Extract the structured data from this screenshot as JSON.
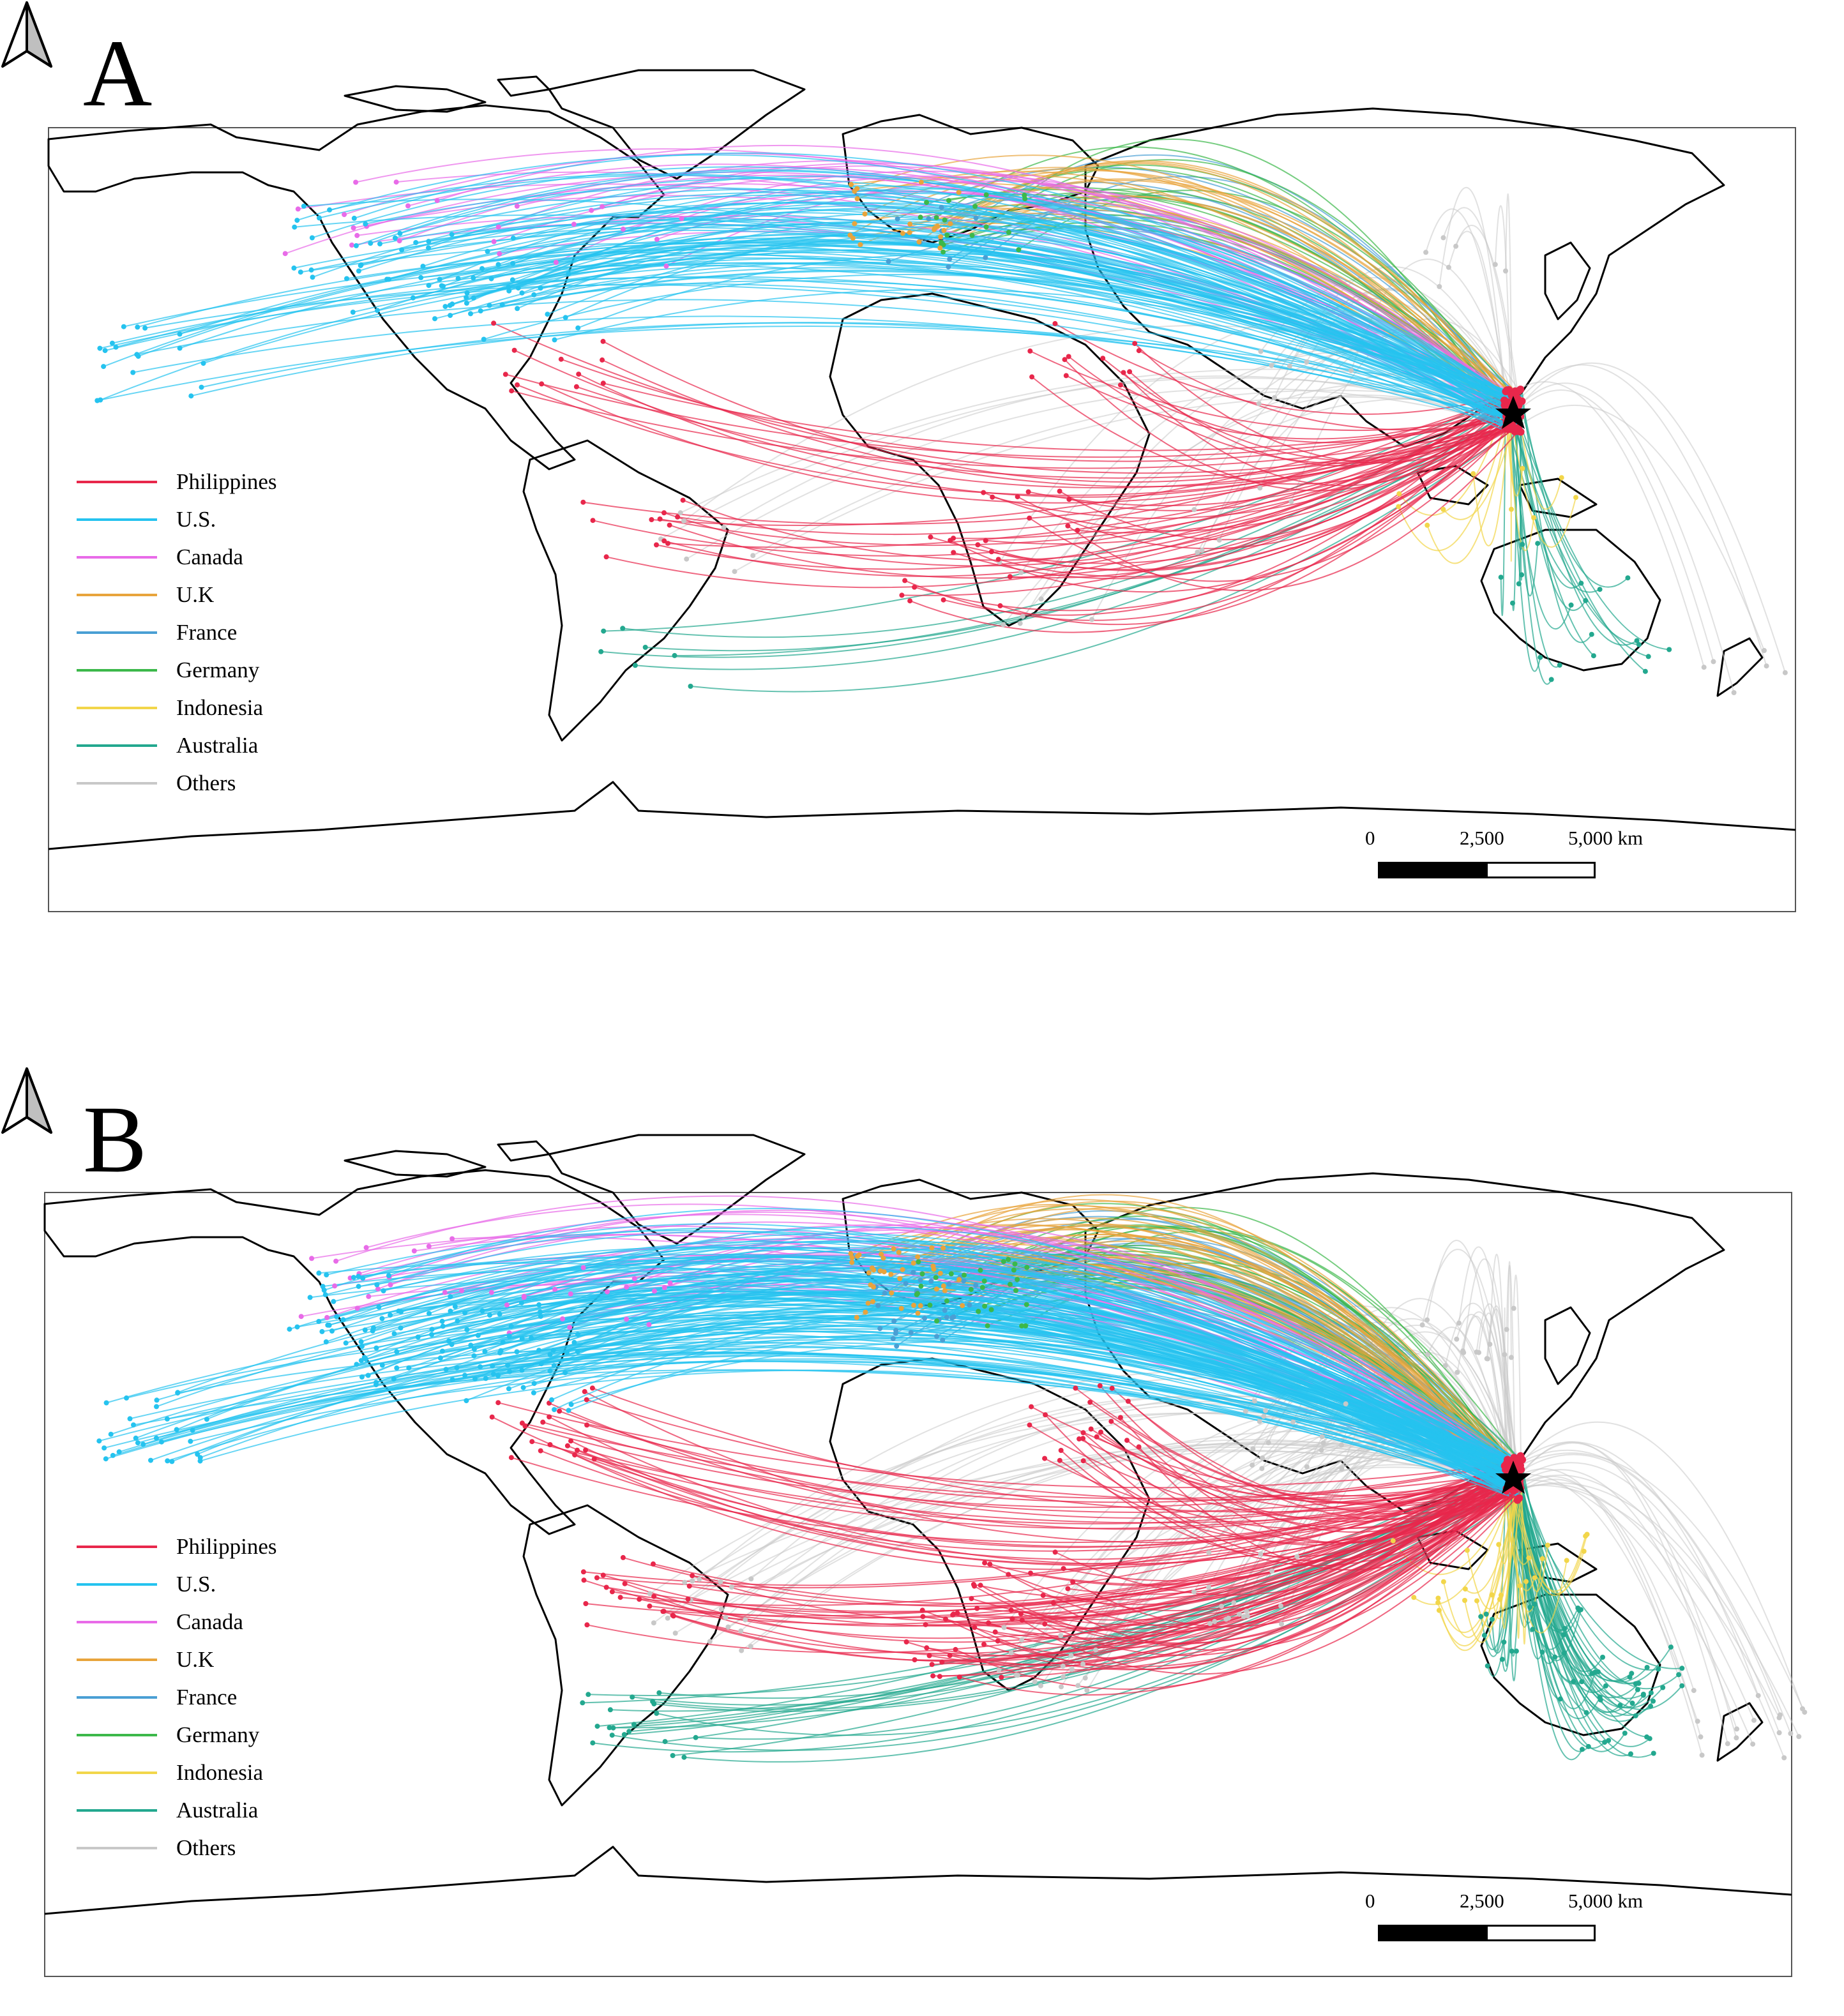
{
  "figure": {
    "panels": [
      {
        "label": "A",
        "legend_title": "",
        "scale": {
          "ticks": [
            "0",
            "2,500",
            "5,000 km"
          ]
        }
      },
      {
        "label": "B",
        "legend_title": "",
        "scale": {
          "ticks": [
            "0",
            "2,500",
            "5,000 km"
          ]
        }
      }
    ],
    "legend": [
      {
        "label": "Philippines",
        "color": "#e8274b"
      },
      {
        "label": "U.S.",
        "color": "#25c3ef"
      },
      {
        "label": "Canada",
        "color": "#e86be8"
      },
      {
        "label": "U.K",
        "color": "#e8a43c"
      },
      {
        "label": "France",
        "color": "#4a9fd4"
      },
      {
        "label": "Germany",
        "color": "#3cb84a"
      },
      {
        "label": "Indonesia",
        "color": "#f2d64a"
      },
      {
        "label": "Australia",
        "color": "#23a88f"
      },
      {
        "label": "Others",
        "color": "#c8c8c8"
      }
    ],
    "hub_marker": "star-icon",
    "north_arrow_icon": "north-arrow-icon"
  },
  "flows": {
    "A": {
      "Philippines": 60,
      "U.S.": 90,
      "Canada": 24,
      "U.K": 22,
      "France": 10,
      "Germany": 18,
      "Indonesia": 10,
      "Australia": 28,
      "Others": 40
    },
    "B": {
      "Philippines": 110,
      "U.S.": 150,
      "Canada": 36,
      "U.K": 40,
      "France": 30,
      "Germany": 30,
      "Indonesia": 24,
      "Australia": 80,
      "Others": 110
    }
  }
}
